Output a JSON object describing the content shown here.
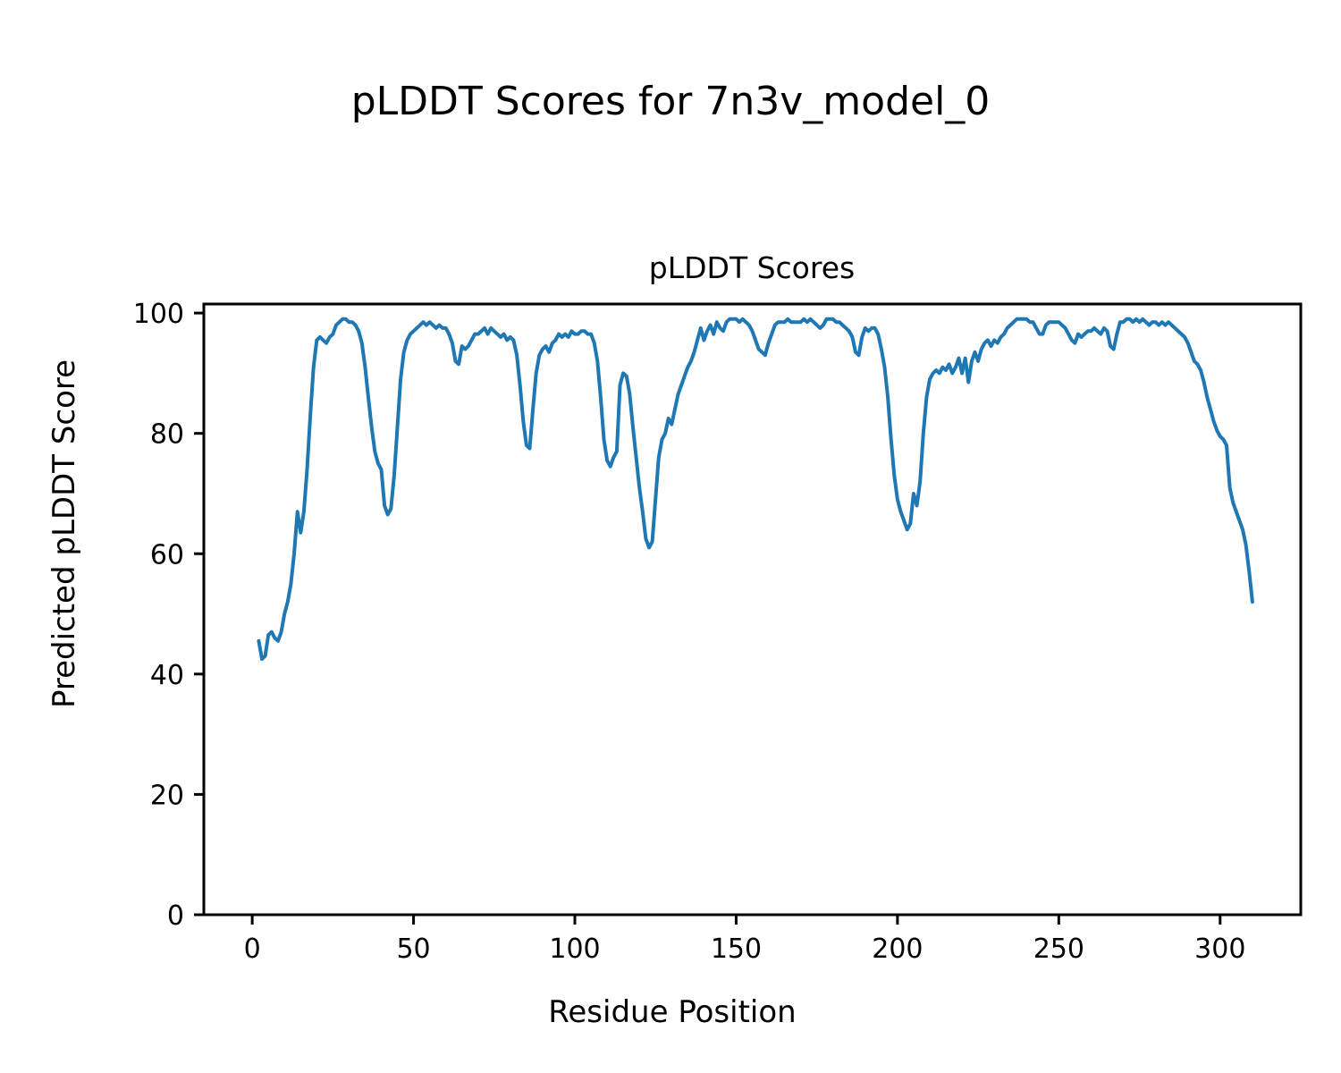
{
  "figure": {
    "suptitle": "pLDDT Scores for 7n3v_model_0",
    "background": "#ffffff"
  },
  "chart_data": {
    "type": "line",
    "title": "pLDDT Scores",
    "xlabel": "Residue Position",
    "ylabel": "Predicted pLDDT Score",
    "xlim": [
      -15,
      325
    ],
    "ylim": [
      0,
      101.5
    ],
    "xticks": [
      0,
      50,
      100,
      150,
      200,
      250,
      300
    ],
    "yticks": [
      0,
      20,
      40,
      60,
      80,
      100
    ],
    "grid": false,
    "legend": "none",
    "line_color": "#1f77b4",
    "line_width": 4,
    "axis_color": "#000000",
    "series": [
      {
        "name": "pLDDT",
        "points": [
          [
            2,
            45.5
          ],
          [
            3,
            42.5
          ],
          [
            4,
            43
          ],
          [
            5,
            46.5
          ],
          [
            6,
            47
          ],
          [
            7,
            46
          ],
          [
            8,
            45.5
          ],
          [
            9,
            47
          ],
          [
            10,
            50
          ],
          [
            11,
            52
          ],
          [
            12,
            55
          ],
          [
            13,
            60
          ],
          [
            14,
            67
          ],
          [
            15,
            63.5
          ],
          [
            16,
            67
          ],
          [
            17,
            74
          ],
          [
            18,
            83
          ],
          [
            19,
            91
          ],
          [
            20,
            95.5
          ],
          [
            21,
            96
          ],
          [
            22,
            95.5
          ],
          [
            23,
            95
          ],
          [
            24,
            96
          ],
          [
            25,
            96.5
          ],
          [
            26,
            98
          ],
          [
            27,
            98.5
          ],
          [
            28,
            99
          ],
          [
            29,
            99
          ],
          [
            30,
            98.5
          ],
          [
            31,
            98.5
          ],
          [
            32,
            98
          ],
          [
            33,
            97
          ],
          [
            34,
            95
          ],
          [
            35,
            91
          ],
          [
            36,
            86
          ],
          [
            37,
            81
          ],
          [
            38,
            77
          ],
          [
            39,
            75
          ],
          [
            40,
            74
          ],
          [
            41,
            68
          ],
          [
            42,
            66.5
          ],
          [
            43,
            67.5
          ],
          [
            44,
            73
          ],
          [
            45,
            81
          ],
          [
            46,
            89
          ],
          [
            47,
            93.5
          ],
          [
            48,
            95.5
          ],
          [
            49,
            96.5
          ],
          [
            50,
            97
          ],
          [
            51,
            97.5
          ],
          [
            52,
            98
          ],
          [
            53,
            98.5
          ],
          [
            54,
            98
          ],
          [
            55,
            98.5
          ],
          [
            56,
            98
          ],
          [
            57,
            97.5
          ],
          [
            58,
            98
          ],
          [
            59,
            97.5
          ],
          [
            60,
            97.5
          ],
          [
            61,
            96.5
          ],
          [
            62,
            95
          ],
          [
            63,
            92
          ],
          [
            64,
            91.5
          ],
          [
            65,
            94.5
          ],
          [
            66,
            94
          ],
          [
            67,
            94.5
          ],
          [
            68,
            95.5
          ],
          [
            69,
            96.5
          ],
          [
            70,
            96.5
          ],
          [
            71,
            97
          ],
          [
            72,
            97.5
          ],
          [
            73,
            96.5
          ],
          [
            74,
            97.5
          ],
          [
            75,
            97
          ],
          [
            76,
            96.5
          ],
          [
            77,
            96
          ],
          [
            78,
            96.5
          ],
          [
            79,
            95.5
          ],
          [
            80,
            96
          ],
          [
            81,
            95.5
          ],
          [
            82,
            93
          ],
          [
            83,
            88
          ],
          [
            84,
            82
          ],
          [
            85,
            78
          ],
          [
            86,
            77.5
          ],
          [
            87,
            84
          ],
          [
            88,
            90
          ],
          [
            89,
            93
          ],
          [
            90,
            94
          ],
          [
            91,
            94.5
          ],
          [
            92,
            93.5
          ],
          [
            93,
            95
          ],
          [
            94,
            95.5
          ],
          [
            95,
            96.5
          ],
          [
            96,
            96
          ],
          [
            97,
            96.5
          ],
          [
            98,
            96
          ],
          [
            99,
            97
          ],
          [
            100,
            96.5
          ],
          [
            101,
            96.5
          ],
          [
            102,
            97
          ],
          [
            103,
            97
          ],
          [
            104,
            96.5
          ],
          [
            105,
            96.5
          ],
          [
            106,
            95
          ],
          [
            107,
            92
          ],
          [
            108,
            86
          ],
          [
            109,
            79
          ],
          [
            110,
            75.5
          ],
          [
            111,
            74.5
          ],
          [
            112,
            76
          ],
          [
            113,
            77
          ],
          [
            114,
            88
          ],
          [
            115,
            90
          ],
          [
            116,
            89.5
          ],
          [
            117,
            86.5
          ],
          [
            118,
            81
          ],
          [
            119,
            76
          ],
          [
            120,
            71
          ],
          [
            121,
            67
          ],
          [
            122,
            62.5
          ],
          [
            123,
            61
          ],
          [
            124,
            62
          ],
          [
            125,
            69
          ],
          [
            126,
            76
          ],
          [
            127,
            79
          ],
          [
            128,
            80
          ],
          [
            129,
            82.5
          ],
          [
            130,
            81.5
          ],
          [
            131,
            84
          ],
          [
            132,
            86.5
          ],
          [
            133,
            88
          ],
          [
            134,
            89.5
          ],
          [
            135,
            91
          ],
          [
            136,
            92
          ],
          [
            137,
            93.5
          ],
          [
            138,
            95.5
          ],
          [
            139,
            97.5
          ],
          [
            140,
            95.5
          ],
          [
            141,
            97
          ],
          [
            142,
            98
          ],
          [
            143,
            96.5
          ],
          [
            144,
            98.5
          ],
          [
            145,
            97.5
          ],
          [
            146,
            97
          ],
          [
            147,
            98.5
          ],
          [
            148,
            99
          ],
          [
            149,
            99
          ],
          [
            150,
            99
          ],
          [
            151,
            98.5
          ],
          [
            152,
            99
          ],
          [
            153,
            98.5
          ],
          [
            154,
            98
          ],
          [
            155,
            97
          ],
          [
            156,
            95.5
          ],
          [
            157,
            94
          ],
          [
            158,
            93.5
          ],
          [
            159,
            93
          ],
          [
            160,
            95
          ],
          [
            161,
            96.5
          ],
          [
            162,
            98
          ],
          [
            163,
            98.5
          ],
          [
            164,
            98.5
          ],
          [
            165,
            98.5
          ],
          [
            166,
            99
          ],
          [
            167,
            98.5
          ],
          [
            168,
            98.5
          ],
          [
            169,
            98.5
          ],
          [
            170,
            98.5
          ],
          [
            171,
            99
          ],
          [
            172,
            98.5
          ],
          [
            173,
            99
          ],
          [
            174,
            98.5
          ],
          [
            175,
            98
          ],
          [
            176,
            97.5
          ],
          [
            177,
            98
          ],
          [
            178,
            99
          ],
          [
            179,
            99
          ],
          [
            180,
            99
          ],
          [
            181,
            98.5
          ],
          [
            182,
            98.5
          ],
          [
            183,
            98
          ],
          [
            184,
            97.5
          ],
          [
            185,
            97
          ],
          [
            186,
            96
          ],
          [
            187,
            93.5
          ],
          [
            188,
            93
          ],
          [
            189,
            96
          ],
          [
            190,
            97.5
          ],
          [
            191,
            97
          ],
          [
            192,
            97.5
          ],
          [
            193,
            97.5
          ],
          [
            194,
            96.5
          ],
          [
            195,
            94
          ],
          [
            196,
            91
          ],
          [
            197,
            86
          ],
          [
            198,
            79
          ],
          [
            199,
            73
          ],
          [
            200,
            69
          ],
          [
            201,
            67
          ],
          [
            202,
            65.5
          ],
          [
            203,
            64
          ],
          [
            204,
            65
          ],
          [
            205,
            70
          ],
          [
            206,
            68
          ],
          [
            207,
            72
          ],
          [
            208,
            80
          ],
          [
            209,
            86
          ],
          [
            210,
            89
          ],
          [
            211,
            90
          ],
          [
            212,
            90.5
          ],
          [
            213,
            90
          ],
          [
            214,
            91
          ],
          [
            215,
            90.5
          ],
          [
            216,
            91.5
          ],
          [
            217,
            90
          ],
          [
            218,
            91
          ],
          [
            219,
            92.5
          ],
          [
            220,
            90
          ],
          [
            221,
            92.5
          ],
          [
            222,
            88.5
          ],
          [
            223,
            92
          ],
          [
            224,
            93.5
          ],
          [
            225,
            92
          ],
          [
            226,
            94
          ],
          [
            227,
            95
          ],
          [
            228,
            95.5
          ],
          [
            229,
            94.5
          ],
          [
            230,
            95.5
          ],
          [
            231,
            95
          ],
          [
            232,
            96
          ],
          [
            233,
            96.5
          ],
          [
            234,
            97.5
          ],
          [
            235,
            98
          ],
          [
            236,
            98.5
          ],
          [
            237,
            99
          ],
          [
            238,
            99
          ],
          [
            239,
            99
          ],
          [
            240,
            99
          ],
          [
            241,
            98.5
          ],
          [
            242,
            98.5
          ],
          [
            243,
            97.5
          ],
          [
            244,
            96.5
          ],
          [
            245,
            96.5
          ],
          [
            246,
            98
          ],
          [
            247,
            98.5
          ],
          [
            248,
            98.5
          ],
          [
            249,
            98.5
          ],
          [
            250,
            98.5
          ],
          [
            251,
            98
          ],
          [
            252,
            97.5
          ],
          [
            253,
            96.5
          ],
          [
            254,
            95.5
          ],
          [
            255,
            95
          ],
          [
            256,
            96.5
          ],
          [
            257,
            96
          ],
          [
            258,
            96.5
          ],
          [
            259,
            97
          ],
          [
            260,
            97
          ],
          [
            261,
            97.5
          ],
          [
            262,
            97
          ],
          [
            263,
            96.5
          ],
          [
            264,
            97.5
          ],
          [
            265,
            97
          ],
          [
            266,
            94.5
          ],
          [
            267,
            94
          ],
          [
            268,
            96.5
          ],
          [
            269,
            98.5
          ],
          [
            270,
            98.5
          ],
          [
            271,
            99
          ],
          [
            272,
            99
          ],
          [
            273,
            98.5
          ],
          [
            274,
            99
          ],
          [
            275,
            98.5
          ],
          [
            276,
            99
          ],
          [
            277,
            98.5
          ],
          [
            278,
            98
          ],
          [
            279,
            98.5
          ],
          [
            280,
            98.5
          ],
          [
            281,
            98
          ],
          [
            282,
            98.5
          ],
          [
            283,
            98
          ],
          [
            284,
            98.5
          ],
          [
            285,
            98
          ],
          [
            286,
            97.5
          ],
          [
            287,
            97
          ],
          [
            288,
            96.5
          ],
          [
            289,
            96
          ],
          [
            290,
            95
          ],
          [
            291,
            93.5
          ],
          [
            292,
            92
          ],
          [
            293,
            91.5
          ],
          [
            294,
            90.5
          ],
          [
            295,
            88.5
          ],
          [
            296,
            86
          ],
          [
            297,
            84
          ],
          [
            298,
            82
          ],
          [
            299,
            80.5
          ],
          [
            300,
            79.5
          ],
          [
            301,
            79
          ],
          [
            302,
            78
          ],
          [
            303,
            71
          ],
          [
            304,
            68.5
          ],
          [
            305,
            67
          ],
          [
            306,
            65.5
          ],
          [
            307,
            64
          ],
          [
            308,
            61.5
          ],
          [
            309,
            57
          ],
          [
            310,
            52
          ]
        ]
      }
    ]
  }
}
